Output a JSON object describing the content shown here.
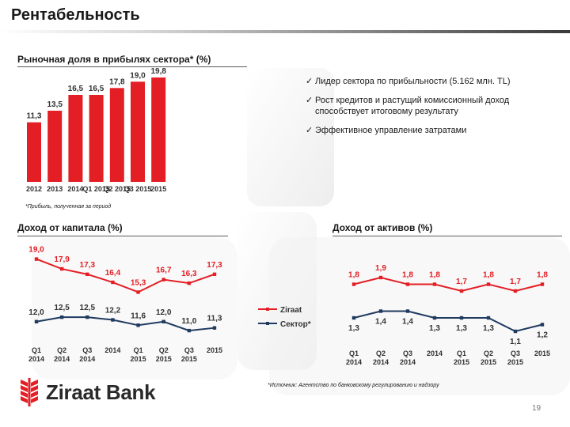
{
  "page": {
    "title": "Рентабельность",
    "page_number": "19",
    "brand": "Ziraat Bank",
    "accent_color": "#e31e24",
    "secondary_color": "#1f3a5f"
  },
  "market_share": {
    "heading": "Рыночная доля в прибылях сектора* (%)",
    "footnote": "*Прибыль, полученная за период"
  },
  "bullets": [
    "Лидер сектора по прибыльности (5.162 млн. TL)",
    "Рост кредитов и растущий комиссионный доход способствует итоговому результату",
    "Эффективное управление затратами"
  ],
  "roe": {
    "heading": "Доход от капитала (%)"
  },
  "roa": {
    "heading": "Доход от активов (%)"
  },
  "legend": {
    "ziraat": "Ziraat",
    "sector": "Сектор*"
  },
  "source_note": "*Источник: Агентство по банковскому регулированию и надзору",
  "chart_data": [
    {
      "type": "bar",
      "title": "Рыночная доля в прибылях сектора* (%)",
      "categories": [
        "2012",
        "2013",
        "2014",
        "Q1 2015",
        "Q2 2015",
        "Q3 2015",
        "2015"
      ],
      "values": [
        11.3,
        13.5,
        16.5,
        16.5,
        17.8,
        19.0,
        19.8
      ],
      "value_labels": [
        "11,3",
        "13,5",
        "16,5",
        "16,5",
        "17,8",
        "19,0",
        "19,8"
      ],
      "ylim": [
        0,
        21
      ],
      "grid": false,
      "color": "#e31e24"
    },
    {
      "type": "line",
      "title": "Доход от капитала (%)",
      "categories": [
        [
          "Q1",
          "2014"
        ],
        [
          "Q2",
          "2014"
        ],
        [
          "Q3",
          "2014"
        ],
        [
          "2014",
          ""
        ],
        [
          "Q1",
          "2015"
        ],
        [
          "Q2",
          "2015"
        ],
        [
          "Q3",
          "2015"
        ],
        [
          "2015",
          ""
        ]
      ],
      "series": [
        {
          "name": "Ziraat",
          "values": [
            19.0,
            17.9,
            17.3,
            16.4,
            15.3,
            16.7,
            16.3,
            17.3
          ],
          "labels": [
            "19,0",
            "17,9",
            "17,3",
            "16,4",
            "15,3",
            "16,7",
            "16,3",
            "17,3"
          ],
          "color": "#e31e24"
        },
        {
          "name": "Сектор*",
          "values": [
            12.0,
            12.5,
            12.5,
            12.2,
            11.6,
            12.0,
            11.0,
            11.3
          ],
          "labels": [
            "12,0",
            "12,5",
            "12,5",
            "12,2",
            "11,6",
            "12,0",
            "11,0",
            "11,3"
          ],
          "color": "#1f3a5f"
        }
      ],
      "ylim": [
        8,
        21
      ],
      "legend": "right"
    },
    {
      "type": "line",
      "title": "Доход от активов (%)",
      "categories": [
        [
          "Q1",
          "2014"
        ],
        [
          "Q2",
          "2014"
        ],
        [
          "Q3",
          "2014"
        ],
        [
          "2014",
          ""
        ],
        [
          "Q1",
          "2015"
        ],
        [
          "Q2",
          "2015"
        ],
        [
          "Q3",
          "2015"
        ],
        [
          "2015",
          ""
        ]
      ],
      "series": [
        {
          "name": "Ziraat",
          "values": [
            1.8,
            1.9,
            1.8,
            1.8,
            1.7,
            1.8,
            1.7,
            1.8
          ],
          "labels": [
            "1,8",
            "1,9",
            "1,8",
            "1,8",
            "1,7",
            "1,8",
            "1,7",
            "1,8"
          ],
          "color": "#e31e24"
        },
        {
          "name": "Сектор*",
          "values": [
            1.3,
            1.4,
            1.4,
            1.3,
            1.3,
            1.3,
            1.1,
            1.2
          ],
          "labels": [
            "1,3",
            "1,4",
            "1,4",
            "1,3",
            "1,3",
            "1,3",
            "1,1",
            "1,2"
          ],
          "color": "#1f3a5f"
        }
      ],
      "ylim": [
        0.5,
        2.5
      ],
      "legend": "left"
    }
  ]
}
